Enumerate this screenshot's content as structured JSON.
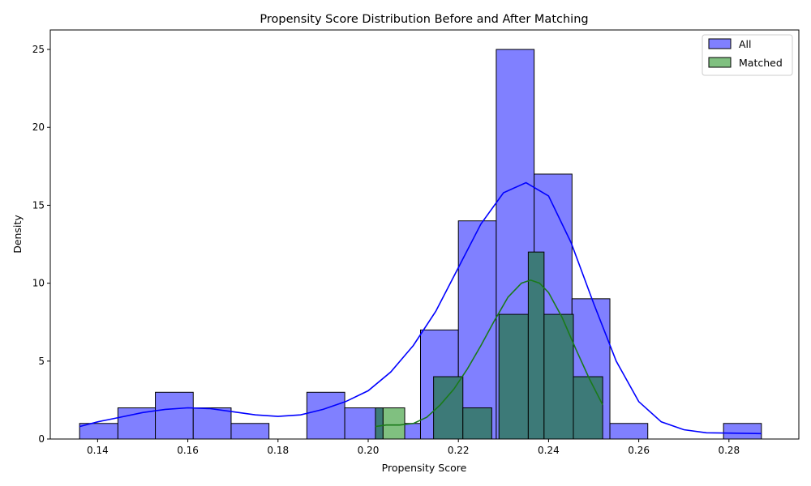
{
  "chart_data": {
    "type": "histogram",
    "title": "Propensity Score Distribution Before and After Matching",
    "xlabel": "Propensity Score",
    "ylabel": "Density",
    "xlim": [
      0.1295,
      0.2955
    ],
    "ylim": [
      0,
      26.25
    ],
    "xticks": [
      0.14,
      0.16,
      0.18,
      0.2,
      0.22,
      0.24,
      0.26,
      0.28
    ],
    "xtick_labels": [
      "0.14",
      "0.16",
      "0.18",
      "0.20",
      "0.22",
      "0.24",
      "0.26",
      "0.28"
    ],
    "yticks": [
      0,
      5,
      10,
      15,
      20,
      25
    ],
    "ytick_labels": [
      "0",
      "5",
      "10",
      "15",
      "20",
      "25"
    ],
    "legend_position": "top-right",
    "grid": false,
    "series": [
      {
        "name": "All",
        "color": "#0000ff",
        "fill": "#8080ff",
        "kde_color": "#0000ff",
        "bins": [
          {
            "x0": 0.136,
            "x1": 0.1445,
            "value": 1
          },
          {
            "x0": 0.1445,
            "x1": 0.1528,
            "value": 2
          },
          {
            "x0": 0.1528,
            "x1": 0.1612,
            "value": 3
          },
          {
            "x0": 0.1612,
            "x1": 0.1696,
            "value": 2
          },
          {
            "x0": 0.1696,
            "x1": 0.178,
            "value": 1
          },
          {
            "x0": 0.1864,
            "x1": 0.1948,
            "value": 3
          },
          {
            "x0": 0.1948,
            "x1": 0.2032,
            "value": 2
          },
          {
            "x0": 0.2032,
            "x1": 0.2116,
            "value": 1
          },
          {
            "x0": 0.2116,
            "x1": 0.22,
            "value": 7
          },
          {
            "x0": 0.22,
            "x1": 0.2284,
            "value": 14
          },
          {
            "x0": 0.2284,
            "x1": 0.2368,
            "value": 25
          },
          {
            "x0": 0.2368,
            "x1": 0.2452,
            "value": 17
          },
          {
            "x0": 0.2452,
            "x1": 0.2536,
            "value": 9
          },
          {
            "x0": 0.2536,
            "x1": 0.262,
            "value": 1
          },
          {
            "x0": 0.2788,
            "x1": 0.2872,
            "value": 1
          }
        ],
        "kde": [
          [
            0.136,
            0.8
          ],
          [
            0.14,
            1.1
          ],
          [
            0.145,
            1.4
          ],
          [
            0.15,
            1.7
          ],
          [
            0.155,
            1.9
          ],
          [
            0.16,
            2.0
          ],
          [
            0.165,
            1.95
          ],
          [
            0.17,
            1.75
          ],
          [
            0.175,
            1.55
          ],
          [
            0.18,
            1.45
          ],
          [
            0.185,
            1.55
          ],
          [
            0.19,
            1.9
          ],
          [
            0.195,
            2.4
          ],
          [
            0.2,
            3.1
          ],
          [
            0.205,
            4.3
          ],
          [
            0.21,
            6.0
          ],
          [
            0.215,
            8.2
          ],
          [
            0.22,
            11.0
          ],
          [
            0.225,
            13.8
          ],
          [
            0.23,
            15.8
          ],
          [
            0.235,
            16.45
          ],
          [
            0.24,
            15.6
          ],
          [
            0.245,
            12.6
          ],
          [
            0.25,
            8.7
          ],
          [
            0.255,
            5.0
          ],
          [
            0.26,
            2.4
          ],
          [
            0.265,
            1.1
          ],
          [
            0.27,
            0.6
          ],
          [
            0.275,
            0.4
          ],
          [
            0.28,
            0.38
          ],
          [
            0.2872,
            0.35
          ]
        ]
      },
      {
        "name": "Matched",
        "color": "#008000",
        "fill": "#80c080",
        "kde_color": "#1a7a1a",
        "bins": [
          {
            "x0": 0.2016,
            "x1": 0.2033,
            "value": 2
          },
          {
            "x0": 0.2033,
            "x1": 0.2081,
            "value": 2
          },
          {
            "x0": 0.2081,
            "x1": 0.2145,
            "value": 0
          },
          {
            "x0": 0.2145,
            "x1": 0.221,
            "value": 4
          },
          {
            "x0": 0.221,
            "x1": 0.2274,
            "value": 2
          },
          {
            "x0": 0.229,
            "x1": 0.2355,
            "value": 8
          },
          {
            "x0": 0.2355,
            "x1": 0.239,
            "value": 12
          },
          {
            "x0": 0.239,
            "x1": 0.2455,
            "value": 8
          },
          {
            "x0": 0.2455,
            "x1": 0.252,
            "value": 4
          }
        ],
        "kde": [
          [
            0.2016,
            0.8
          ],
          [
            0.204,
            0.9
          ],
          [
            0.207,
            0.9
          ],
          [
            0.21,
            1.0
          ],
          [
            0.213,
            1.4
          ],
          [
            0.216,
            2.2
          ],
          [
            0.219,
            3.2
          ],
          [
            0.222,
            4.5
          ],
          [
            0.225,
            6.0
          ],
          [
            0.228,
            7.6
          ],
          [
            0.231,
            9.1
          ],
          [
            0.234,
            10.0
          ],
          [
            0.236,
            10.2
          ],
          [
            0.238,
            10.0
          ],
          [
            0.24,
            9.4
          ],
          [
            0.243,
            7.8
          ],
          [
            0.246,
            5.8
          ],
          [
            0.249,
            3.9
          ],
          [
            0.252,
            2.2
          ]
        ]
      }
    ]
  }
}
